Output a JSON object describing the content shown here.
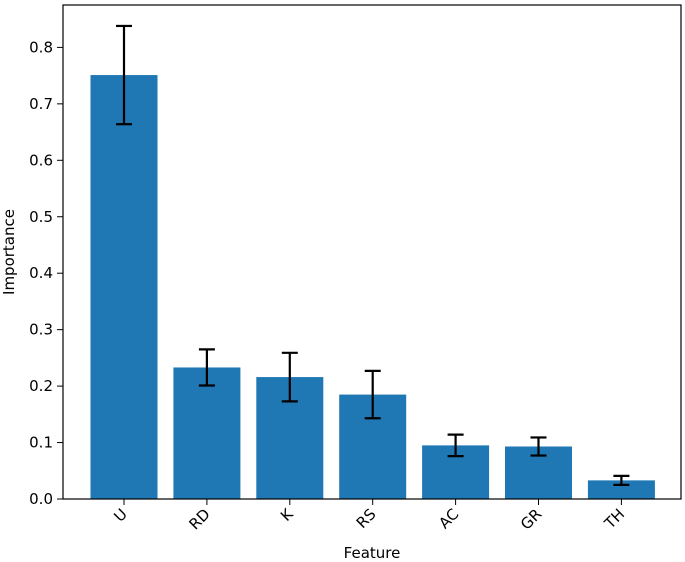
{
  "chart_data": {
    "type": "bar",
    "title": "",
    "xlabel": "Feature",
    "ylabel": "Importance",
    "categories": [
      "U",
      "RD",
      "K",
      "RS",
      "AC",
      "GR",
      "TH"
    ],
    "values": [
      0.751,
      0.233,
      0.216,
      0.185,
      0.095,
      0.093,
      0.033
    ],
    "error": [
      0.087,
      0.032,
      0.043,
      0.042,
      0.019,
      0.016,
      0.008
    ],
    "ylim": [
      0,
      0.88
    ],
    "yticks": [
      "0.0",
      "0.1",
      "0.2",
      "0.3",
      "0.4",
      "0.5",
      "0.6",
      "0.7",
      "0.8"
    ],
    "grid": false,
    "bar_color": "#1f77b4",
    "errorbar_color": "#000000"
  }
}
